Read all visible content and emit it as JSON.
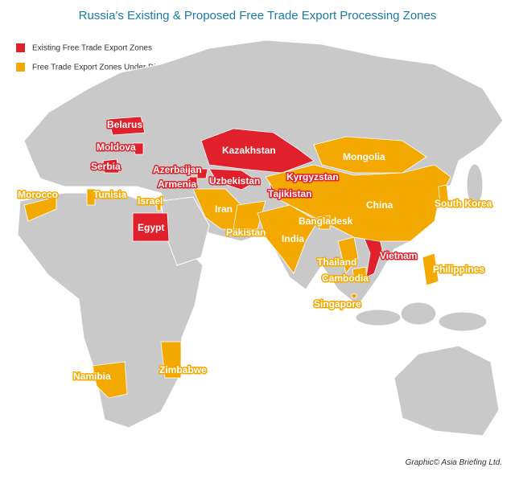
{
  "title": "Russia's Existing & Proposed Free Trade Export Processing Zones",
  "legend": [
    {
      "label": "Existing Free Trade Export Zones",
      "color": "#e0212b"
    },
    {
      "label": "Free Trade Export Zones Under Discussion",
      "color": "#f4a900"
    }
  ],
  "countries": [
    {
      "label": "Belarus",
      "status": 0
    },
    {
      "label": "Moldova",
      "status": 0
    },
    {
      "label": "Serbia",
      "status": 0
    },
    {
      "label": "Azerbaijan",
      "status": 0
    },
    {
      "label": "Armenia",
      "status": 0
    },
    {
      "label": "Egypt",
      "status": 0
    },
    {
      "label": "Kazakhstan",
      "status": 0
    },
    {
      "label": "Uzbekistan",
      "status": 0
    },
    {
      "label": "Kyrgyzstan",
      "status": 0
    },
    {
      "label": "Tajikistan",
      "status": 0
    },
    {
      "label": "Vietnam",
      "status": 0
    },
    {
      "label": "Morocco",
      "status": 1
    },
    {
      "label": "Tunisia",
      "status": 1
    },
    {
      "label": "Israel",
      "status": 1
    },
    {
      "label": "Mongolia",
      "status": 1
    },
    {
      "label": "China",
      "status": 1
    },
    {
      "label": "South Korea",
      "status": 1
    },
    {
      "label": "Iran",
      "status": 1
    },
    {
      "label": "Pakistan",
      "status": 1
    },
    {
      "label": "India",
      "status": 1
    },
    {
      "label": "Bangladesk",
      "status": 1
    },
    {
      "label": "Thailand",
      "status": 1
    },
    {
      "label": "Cambodia",
      "status": 1
    },
    {
      "label": "Philippines",
      "status": 1
    },
    {
      "label": "Singapore",
      "status": 1
    },
    {
      "label": "Namibia",
      "status": 1
    },
    {
      "label": "Zimbabwe",
      "status": 1
    }
  ],
  "credit": "Graphic© Asia Briefing Ltd."
}
